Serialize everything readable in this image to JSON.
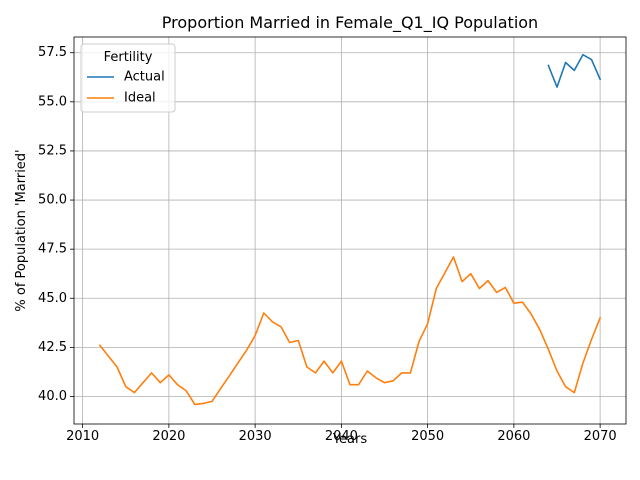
{
  "chart_data": {
    "type": "line",
    "title": "Proportion Married in Female_Q1_IQ Population",
    "xlabel": "Years",
    "ylabel": "% of Population 'Married'",
    "xlim": [
      2009,
      2073
    ],
    "ylim": [
      38.6,
      58.3
    ],
    "xticks": [
      2010,
      2020,
      2030,
      2040,
      2050,
      2060,
      2070
    ],
    "yticks": [
      40.0,
      42.5,
      45.0,
      47.5,
      50.0,
      52.5,
      55.0,
      57.5
    ],
    "xtick_labels": [
      "2010",
      "2020",
      "2030",
      "2040",
      "2050",
      "2060",
      "2070"
    ],
    "ytick_labels": [
      "40.0",
      "42.5",
      "45.0",
      "47.5",
      "50.0",
      "52.5",
      "55.0",
      "57.5"
    ],
    "grid": true,
    "legend": {
      "title": "Fertility",
      "position": "upper-left"
    },
    "series": [
      {
        "name": "Actual",
        "color": "#1f77b4",
        "x": [
          2064,
          2065,
          2066,
          2067,
          2068,
          2069,
          2070
        ],
        "y": [
          56.85,
          55.75,
          57.0,
          56.6,
          57.4,
          57.15,
          56.15
        ]
      },
      {
        "name": "Ideal",
        "color": "#ff7f0e",
        "x": [
          2012,
          2013,
          2014,
          2015,
          2016,
          2017,
          2018,
          2019,
          2020,
          2021,
          2022,
          2023,
          2024,
          2025,
          2026,
          2027,
          2028,
          2029,
          2030,
          2031,
          2032,
          2033,
          2034,
          2035,
          2036,
          2037,
          2038,
          2039,
          2040,
          2041,
          2042,
          2043,
          2044,
          2045,
          2046,
          2047,
          2048,
          2049,
          2050,
          2051,
          2052,
          2053,
          2054,
          2055,
          2056,
          2057,
          2058,
          2059,
          2060,
          2061,
          2062,
          2063,
          2064,
          2065,
          2066,
          2067,
          2068,
          2069,
          2070
        ],
        "y": [
          42.6,
          42.05,
          41.5,
          40.5,
          40.2,
          40.7,
          41.2,
          40.7,
          41.1,
          40.6,
          40.3,
          39.6,
          39.65,
          39.75,
          40.4,
          41.05,
          41.7,
          42.35,
          43.1,
          44.25,
          43.8,
          43.55,
          42.75,
          42.85,
          41.5,
          41.2,
          41.8,
          41.2,
          41.8,
          40.6,
          40.6,
          41.3,
          40.95,
          40.7,
          40.8,
          41.2,
          41.2,
          42.8,
          43.7,
          45.5,
          46.3,
          47.1,
          45.85,
          46.25,
          45.5,
          45.9,
          45.3,
          45.55,
          44.75,
          44.8,
          44.2,
          43.4,
          42.4,
          41.3,
          40.5,
          40.2,
          41.7,
          42.9,
          44.0
        ]
      }
    ]
  }
}
